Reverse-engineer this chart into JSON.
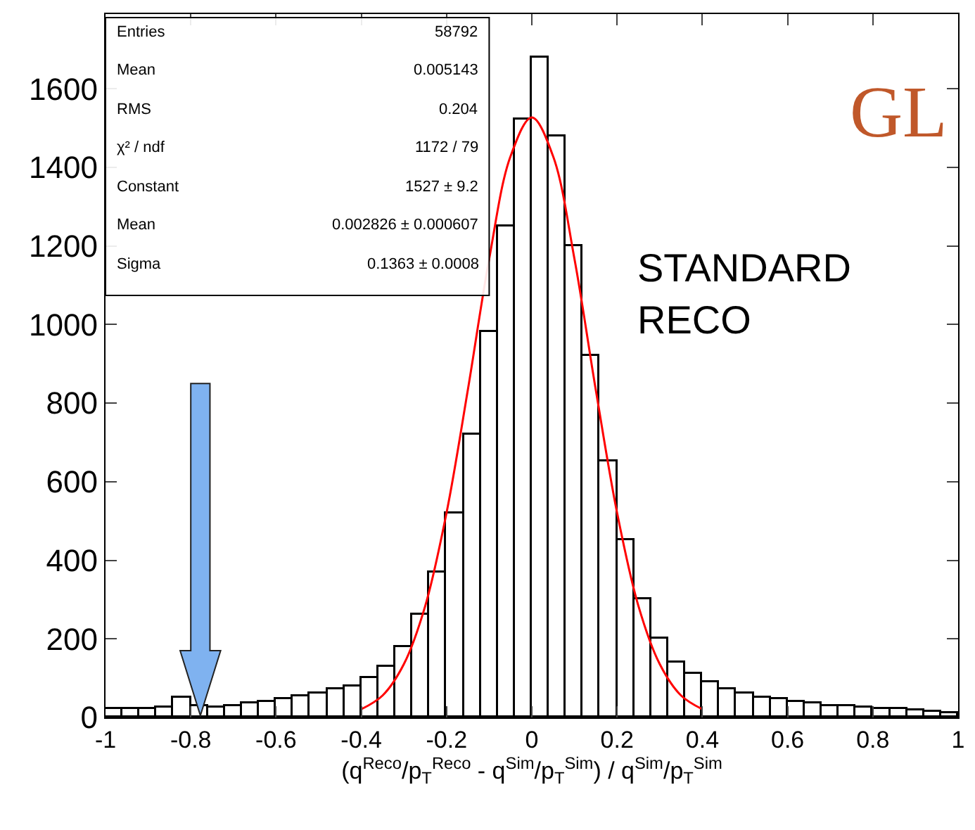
{
  "chart_data": {
    "type": "histogram",
    "xlabel": "(q$^{Reco}$/p$_{T}$$^{Reco}$ - q$^{Sim}$/p$_{T}$$^{Sim}$) / q$^{Sim}$/p$_{T}$$^{Sim}$",
    "bins": [
      -1,
      -0.96,
      -0.92,
      -0.88,
      -0.84,
      -0.8,
      -0.76,
      -0.72,
      -0.68,
      -0.64,
      -0.6,
      -0.56,
      -0.52,
      -0.48,
      -0.44,
      -0.4,
      -0.36,
      -0.32,
      -0.28,
      -0.24,
      -0.2,
      -0.16,
      -0.12,
      -0.08,
      -0.04,
      0,
      0.04,
      0.08,
      0.12,
      0.16,
      0.2,
      0.24,
      0.28,
      0.32,
      0.36,
      0.4,
      0.44,
      0.48,
      0.52,
      0.56,
      0.6,
      0.64,
      0.68,
      0.72,
      0.76,
      0.8,
      0.84,
      0.88,
      0.92,
      0.96,
      1
    ],
    "series": [
      {
        "color": "#000000",
        "values": [
          20,
          20,
          20,
          25,
          50,
          30,
          25,
          30,
          35,
          40,
          45,
          55,
          60,
          70,
          80,
          100,
          130,
          180,
          260,
          370,
          520,
          720,
          980,
          1250,
          1520,
          1680,
          1480,
          1200,
          920,
          650,
          450,
          300,
          200,
          140,
          110,
          90,
          70,
          60,
          50,
          45,
          40,
          35,
          30,
          28,
          25,
          22,
          20,
          18,
          15,
          12
        ]
      },
      {
        "type": "line",
        "color": "#ff0000",
        "x": [
          -0.4,
          -0.35,
          -0.3,
          -0.25,
          -0.2,
          -0.15,
          -0.1,
          -0.05,
          0,
          0.05,
          0.1,
          0.15,
          0.2,
          0.25,
          0.3,
          0.35,
          0.4
        ],
        "values": [
          21,
          56,
          136,
          284,
          521,
          834,
          1167,
          1428,
          1527,
          1428,
          1167,
          834,
          521,
          284,
          136,
          56,
          21
        ]
      }
    ],
    "xlim": [
      -1,
      1
    ],
    "xticks": [
      -1,
      -0.8,
      -0.6,
      -0.4,
      -0.2,
      0,
      0.2,
      0.4,
      0.6,
      0.8,
      1
    ],
    "ylim": [
      0,
      1790
    ],
    "yticks": [
      0,
      200,
      400,
      600,
      800,
      1000,
      1200,
      1400,
      1600
    ],
    "grid": false,
    "legend": false,
    "annotations": [
      "Entries",
      "58792",
      "Mean",
      "0.005143",
      "RMS",
      "0.204",
      "χ² / ndf",
      "1172 / 79",
      "Constant",
      "1527 ± 9.2",
      "Mean",
      "0.002826 ± 0.000607",
      "Sigma",
      "0.1363 ± 0.0008",
      "STANDARD",
      "RECO",
      "GL"
    ]
  }
}
